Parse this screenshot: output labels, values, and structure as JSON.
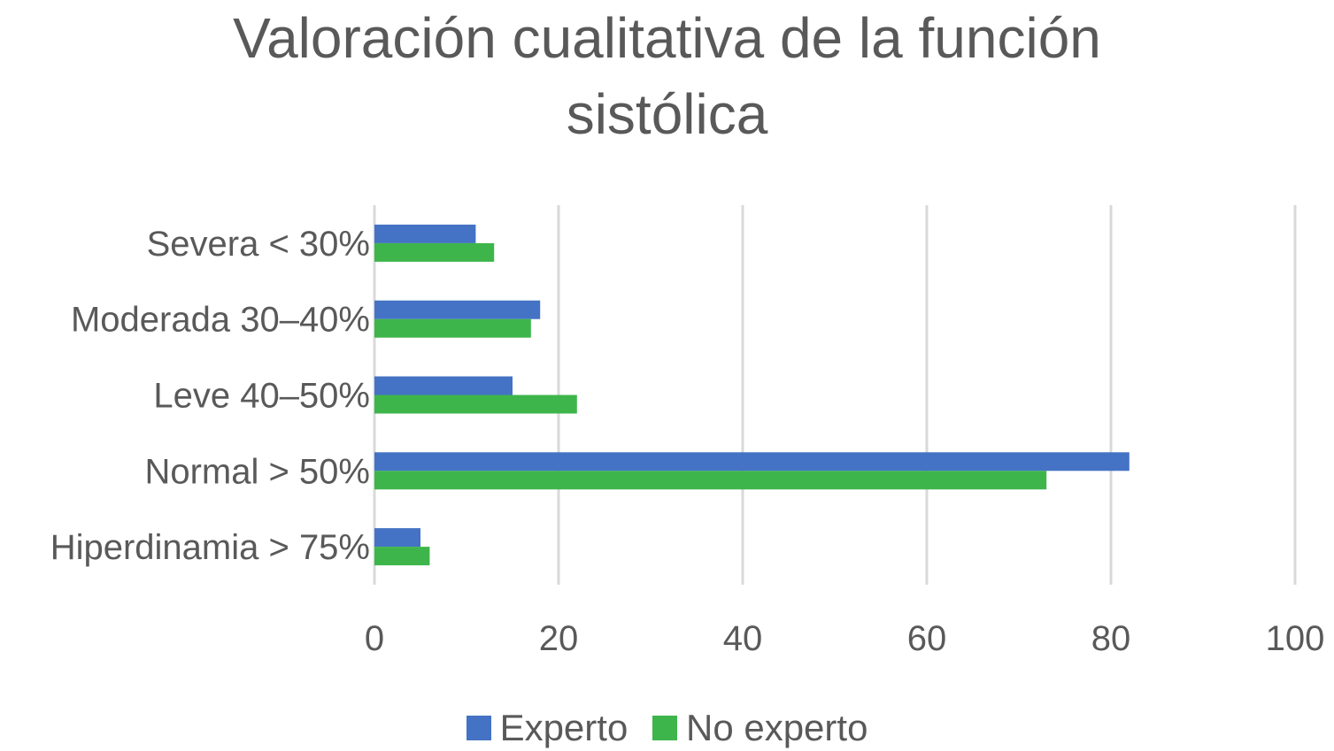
{
  "chart_data": {
    "type": "bar",
    "orientation": "horizontal",
    "title_lines": [
      "Valoración cualitativa de la función",
      "sistólica"
    ],
    "categories": [
      "Severa < 30%",
      "Moderada 30–40%",
      "Leve 40–50%",
      "Normal > 50%",
      "Hiperdinamia > 75%"
    ],
    "series": [
      {
        "name": "Experto",
        "color": "#4472C4",
        "values": [
          11,
          18,
          15,
          82,
          5
        ]
      },
      {
        "name": "No experto",
        "color": "#3DB54A",
        "values": [
          13,
          17,
          22,
          73,
          6
        ]
      }
    ],
    "xlim": [
      0,
      100
    ],
    "xticks": [
      "0",
      "20",
      "40",
      "60",
      "80",
      "100"
    ],
    "grid": true,
    "legend_position": "bottom"
  }
}
